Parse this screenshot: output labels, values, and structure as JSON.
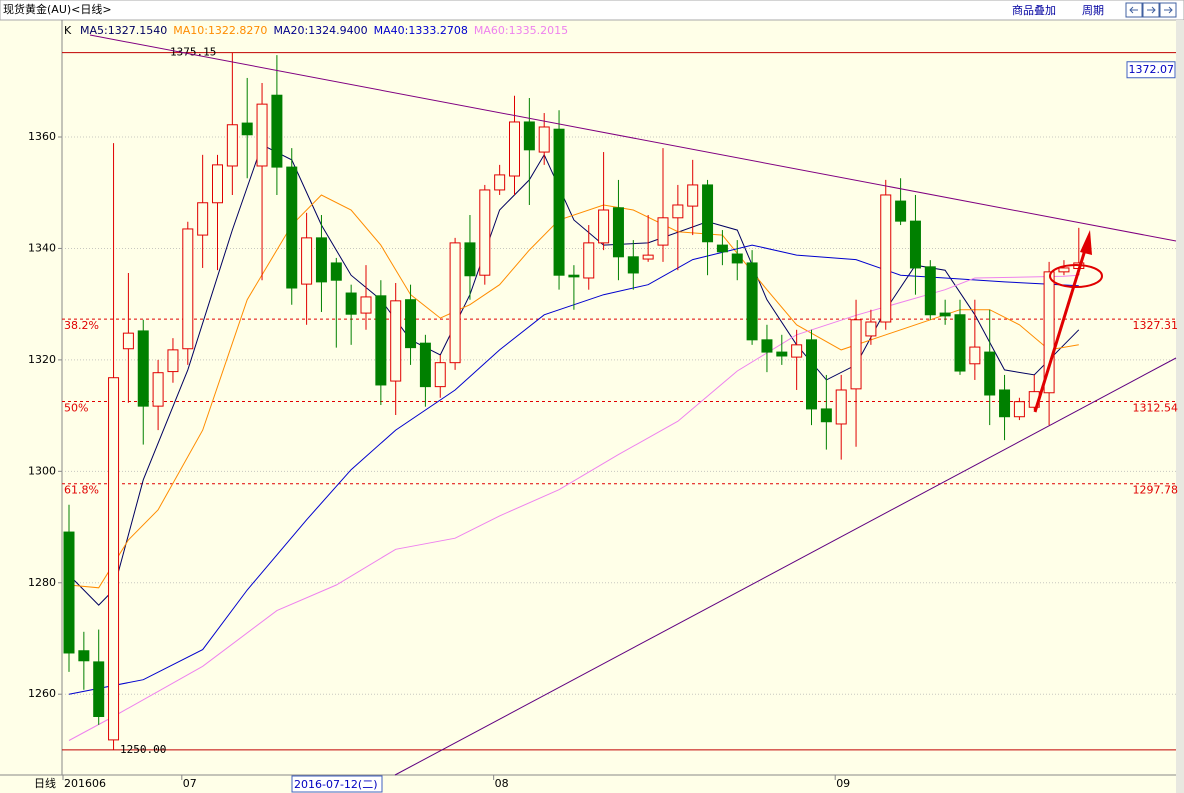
{
  "header": {
    "title": "现货黄金(AU)<日线>",
    "overlay": "商品叠加",
    "period": "周期"
  },
  "chart_data": {
    "type": "candlestick",
    "indicator": "K",
    "ylim": [
      1245.5,
      1381
    ],
    "yticks": [
      1260,
      1280,
      1300,
      1320,
      1340,
      1360
    ],
    "grid": true,
    "x_axis_label": "日线",
    "categories": [
      "201606",
      null,
      null,
      null,
      null,
      null,
      null,
      null,
      "07",
      null,
      null,
      null,
      null,
      null,
      null,
      null,
      null,
      null,
      null,
      null,
      null,
      null,
      null,
      null,
      null,
      null,
      null,
      null,
      null,
      "08",
      null,
      null,
      null,
      null,
      null,
      null,
      null,
      null,
      null,
      null,
      null,
      null,
      null,
      null,
      null,
      null,
      null,
      null,
      null,
      null,
      null,
      null,
      "09",
      null,
      null,
      null,
      null,
      null,
      null,
      null,
      null,
      null,
      null,
      null,
      null,
      null,
      null,
      null,
      null
    ],
    "cursor_date": "2016-07-12(二)",
    "cursor_price": 1372.07,
    "up_color": "#e00000",
    "down_color": "#008000",
    "open": [
      1289.1,
      1267.8,
      1265.8,
      1251.8,
      1322,
      1325.2,
      1311.7,
      1317.9,
      1322,
      1342.4,
      1348.2,
      1354.8,
      1362.5,
      1354.8,
      1367.5,
      1354.6,
      1333.6,
      1341.9,
      1337.4,
      1332,
      1328.4,
      1331.5,
      1316.2,
      1330.8,
      1323,
      1315.2,
      1319.5,
      1341,
      1335.2,
      1350.5,
      1353,
      1362.7,
      1357.3,
      1361.4,
      1335.2,
      1334.7,
      1341,
      1347.3,
      1338.5,
      1338.1,
      1340.6,
      1345.5,
      1347.6,
      1351.4,
      1340.6,
      1339,
      1337.4,
      1323.6,
      1321.4,
      1320.5,
      1323.6,
      1311.2,
      1308.5,
      1314.8,
      1324.3,
      1326.8,
      1348.5,
      1344.9,
      1336.7,
      1328.4,
      1328.1,
      1319.3,
      1321.4,
      1314.6,
      1309.8,
      1311.5,
      1314.1,
      1335.8,
      1336.4
    ],
    "high": [
      1294,
      1271.2,
      1271.6,
      1358.9,
      1335.6,
      1327.2,
      1320,
      1323.9,
      1344.8,
      1356.8,
      1356.8,
      1375.2,
      1370.6,
      1369.7,
      1374.7,
      1358,
      1346.4,
      1346,
      1338.3,
      1333.5,
      1337,
      1334.3,
      1333.8,
      1333.5,
      1324.5,
      1320.9,
      1341.9,
      1346,
      1351.4,
      1355,
      1367.4,
      1367,
      1364.3,
      1364.8,
      1337,
      1344.2,
      1357.3,
      1352.3,
      1341.5,
      1346,
      1358,
      1351.4,
      1355.9,
      1352.3,
      1343.3,
      1341.5,
      1339.7,
      1326.3,
      1324.5,
      1325.4,
      1325.4,
      1317.3,
      1317.3,
      1330.8,
      1329,
      1352.3,
      1352.6,
      1349.6,
      1337.9,
      1330.8,
      1330.8,
      1330.8,
      1329,
      1317.3,
      1313.2,
      1317.3,
      1337.6,
      1337.9,
      1343.7
    ],
    "low": [
      1264,
      1260.8,
      1254.5,
      1250,
      1312.3,
      1304.8,
      1307.4,
      1315.9,
      1319.1,
      1336.5,
      1336.1,
      1349.6,
      1352.6,
      1334.3,
      1349.6,
      1329.9,
      1326.3,
      1328.6,
      1322.2,
      1322.7,
      1325.4,
      1311.9,
      1310.1,
      1319.1,
      1311.6,
      1313.2,
      1318.2,
      1330.8,
      1333.5,
      1349.6,
      1349.6,
      1347.8,
      1355,
      1332.6,
      1329,
      1332.6,
      1339.7,
      1334.3,
      1332.6,
      1337.6,
      1337.6,
      1336.1,
      1342.4,
      1335.2,
      1337,
      1334.3,
      1322.7,
      1317.8,
      1319.1,
      1314.6,
      1308.3,
      1303.9,
      1302.1,
      1304.4,
      1322.7,
      1325.4,
      1344.2,
      1331.7,
      1327.2,
      1326.3,
      1317.3,
      1316.4,
      1308.3,
      1305.6,
      1309.2,
      1311,
      1308.3,
      1335.2,
      1335.2
    ],
    "close": [
      1267.4,
      1266,
      1256,
      1316.8,
      1324.8,
      1311.7,
      1317.7,
      1321.8,
      1343.5,
      1348.2,
      1355,
      1362.2,
      1360.4,
      1365.9,
      1354.6,
      1332.9,
      1341.9,
      1334,
      1334.3,
      1328.2,
      1331.3,
      1315.5,
      1330.6,
      1322.2,
      1315.2,
      1319.5,
      1341,
      1335.1,
      1350.5,
      1353.2,
      1362.7,
      1357.7,
      1361.8,
      1335.2,
      1334.9,
      1341,
      1346.9,
      1338.5,
      1335.6,
      1338.8,
      1345.5,
      1347.8,
      1351.4,
      1341.2,
      1339.4,
      1337.4,
      1323.6,
      1321.4,
      1320.7,
      1322.7,
      1311.2,
      1308.9,
      1314.6,
      1327.2,
      1326.8,
      1349.6,
      1344.9,
      1336.5,
      1328.1,
      1327.9,
      1318,
      1322.3,
      1313.7,
      1309.8,
      1312.5,
      1314.3,
      1335.8,
      1336.5,
      1337.4
    ],
    "moving_averages": [
      {
        "name": "MA5:1327.1540",
        "color": "#000060",
        "x": [
          0,
          2,
          3,
          5,
          8,
          11,
          13,
          15,
          17,
          19,
          21,
          23,
          25,
          27,
          29,
          31,
          32,
          34,
          36,
          39,
          43,
          45,
          47,
          49,
          51,
          53,
          55,
          57,
          59,
          61,
          63,
          65,
          68
        ],
        "values": [
          1281.4,
          1276,
          1278.7,
          1298.5,
          1318.2,
          1343.3,
          1358.6,
          1355.9,
          1344.2,
          1335.2,
          1330.8,
          1323.6,
          1320.9,
          1331.7,
          1346.9,
          1352.3,
          1356.8,
          1345.1,
          1340.6,
          1341,
          1344.8,
          1343.3,
          1330.8,
          1322.7,
          1316.4,
          1319.1,
          1329,
          1337,
          1336.1,
          1328.1,
          1318.2,
          1317.3,
          1325.4
        ]
      },
      {
        "name": "MA10:1322.8270",
        "color": "#ff8c00",
        "x": [
          0,
          2,
          4,
          6,
          9,
          12,
          15,
          17,
          19,
          21,
          23,
          25,
          27,
          29,
          31,
          33,
          36,
          38,
          41,
          44,
          47,
          49,
          52,
          55,
          58,
          60,
          62,
          64,
          66,
          68
        ],
        "values": [
          1279.6,
          1279.1,
          1287.7,
          1293.1,
          1307.4,
          1330.8,
          1344.2,
          1349.6,
          1346.9,
          1340.6,
          1331.7,
          1327.5,
          1329.9,
          1333.5,
          1339.7,
          1345.1,
          1347.8,
          1346.9,
          1343,
          1342.4,
          1332.6,
          1326.3,
          1321.8,
          1324.5,
          1327.2,
          1329,
          1329,
          1326.3,
          1321.8,
          1322.7
        ]
      },
      {
        "name": "MA20:1324.9400",
        "color": "#00008b"
      },
      {
        "name": "MA40:1333.2708",
        "color": "#0000cd",
        "x": [
          0,
          5,
          9,
          12,
          16,
          19,
          22,
          26,
          29,
          32,
          36,
          39,
          42,
          46,
          49,
          53,
          56,
          59,
          63,
          68
        ],
        "values": [
          1260,
          1262.6,
          1268,
          1278.7,
          1291.3,
          1300.3,
          1307.4,
          1314.6,
          1321.8,
          1328.1,
          1331.7,
          1333.5,
          1338,
          1340.6,
          1338.8,
          1338,
          1335.2,
          1334.7,
          1334,
          1333.3
        ]
      },
      {
        "name": "MA60:1335.2015",
        "color": "#ee82ee",
        "x": [
          0,
          3,
          9,
          14,
          18,
          22,
          26,
          29,
          33,
          37,
          41,
          45,
          49,
          53,
          59,
          61,
          67,
          68
        ],
        "values": [
          1251.7,
          1256,
          1265,
          1275,
          1279.6,
          1286,
          1288,
          1292,
          1296.7,
          1303,
          1309,
          1318,
          1324.5,
          1328,
          1332.6,
          1334.7,
          1335,
          1335.2
        ]
      }
    ],
    "extremes": [
      1375.15,
      {
        "value": 1250,
        "label": "1250.00"
      }
    ],
    "fibonacci": [
      {
        "name": "38.2%",
        "value": 1327.31
      },
      {
        "name": "50%",
        "value": 1312.54
      },
      {
        "name": "61.8%",
        "value": 1297.78
      }
    ]
  }
}
